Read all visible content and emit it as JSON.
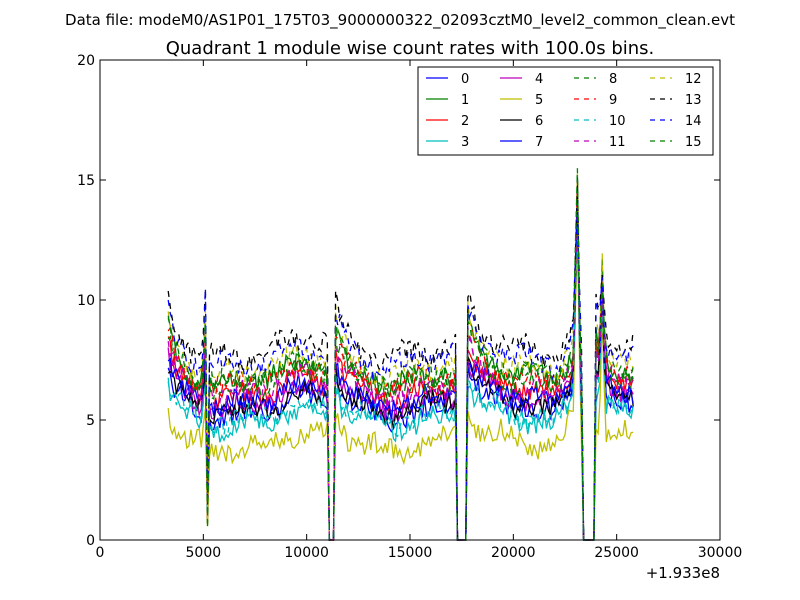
{
  "header": {
    "file_label": "Data file: modeM0/AS1P01_175T03_9000000322_02093cztM0_level2_common_clean.evt"
  },
  "chart_data": {
    "type": "line",
    "title": "Quadrant 1 module wise count rates with 100.0s bins.",
    "xlabel": "",
    "ylabel": "",
    "x_offset_label": "+1.933e8",
    "xlim": [
      0,
      30000
    ],
    "ylim": [
      0,
      20
    ],
    "xticks": [
      0,
      5000,
      10000,
      15000,
      20000,
      25000,
      30000
    ],
    "yticks": [
      0,
      5,
      10,
      15,
      20
    ],
    "legend_position": "top-right",
    "bin_size_s": 100,
    "series": [
      {
        "name": "0",
        "color": "#0000ff",
        "dash": "solid",
        "base": 5.5
      },
      {
        "name": "1",
        "color": "#008000",
        "dash": "solid",
        "base": 6.9
      },
      {
        "name": "2",
        "color": "#ff0000",
        "dash": "solid",
        "base": 6.3
      },
      {
        "name": "3",
        "color": "#00bfbf",
        "dash": "solid",
        "base": 5.1
      },
      {
        "name": "4",
        "color": "#bf00bf",
        "dash": "solid",
        "base": 5.9
      },
      {
        "name": "5",
        "color": "#bfbf00",
        "dash": "solid",
        "base": 4.1
      },
      {
        "name": "6",
        "color": "#000000",
        "dash": "solid",
        "base": 5.7
      },
      {
        "name": "7",
        "color": "#0000ff",
        "dash": "solid",
        "base": 6.0
      },
      {
        "name": "8",
        "color": "#008000",
        "dash": "dashed",
        "base": 6.6
      },
      {
        "name": "9",
        "color": "#ff0000",
        "dash": "dashed",
        "base": 6.8
      },
      {
        "name": "10",
        "color": "#00bfbf",
        "dash": "dashed",
        "base": 5.3
      },
      {
        "name": "11",
        "color": "#bf00bf",
        "dash": "dashed",
        "base": 6.4
      },
      {
        "name": "12",
        "color": "#bfbf00",
        "dash": "dashed",
        "base": 7.3
      },
      {
        "name": "13",
        "color": "#000000",
        "dash": "dashed",
        "base": 8.0
      },
      {
        "name": "14",
        "color": "#0000ff",
        "dash": "dashed",
        "base": 7.6
      },
      {
        "name": "15",
        "color": "#008000",
        "dash": "dashed",
        "base": 7.0
      }
    ],
    "segments": [
      {
        "start": 3300,
        "end": 11000
      },
      {
        "start": 11400,
        "end": 17200
      },
      {
        "start": 17800,
        "end": 23300
      },
      {
        "start": 24000,
        "end": 25800
      }
    ],
    "features": {
      "dip_time": 5200,
      "dip_value": 0.5,
      "peak_time": 23100,
      "peak_value": 16.2,
      "second_peak_time": 24300,
      "second_peak_value": 11.5
    }
  }
}
